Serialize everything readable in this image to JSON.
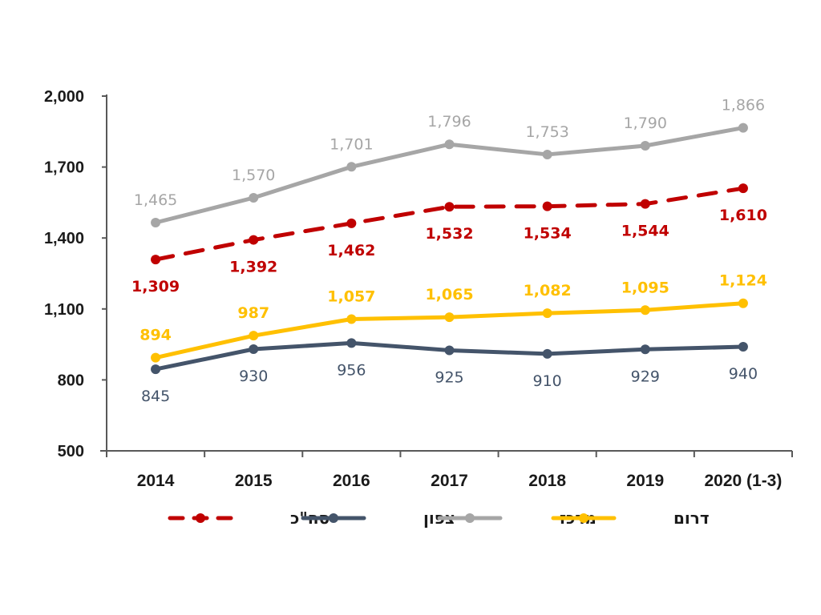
{
  "chart_data": {
    "type": "line",
    "title": "",
    "xlabel": "",
    "ylabel": "",
    "categories": [
      "2014",
      "2015",
      "2016",
      "2017",
      "2018",
      "2019",
      "2020 (1-3)"
    ],
    "ylim": [
      500,
      2000
    ],
    "yticks": [
      500,
      800,
      1100,
      1400,
      1700,
      2000
    ],
    "ytick_labels": [
      "500",
      "800",
      "1,100",
      "1,400",
      "1,700",
      "2,000"
    ],
    "grid": false,
    "legend_position": "bottom",
    "series": [
      {
        "name": "מרכז",
        "color": "#A6A6A6",
        "line_style": "solid",
        "label_position": "above",
        "label_bold": false,
        "values": [
          1465,
          1570,
          1701,
          1796,
          1753,
          1790,
          1866
        ],
        "labels": [
          "1,465",
          "1,570",
          "1,701",
          "1,796",
          "1,753",
          "1,790",
          "1,866"
        ]
      },
      {
        "name": "סה\"כ",
        "color": "#C00000",
        "line_style": "dashed",
        "label_position": "below",
        "label_bold": true,
        "values": [
          1309,
          1392,
          1462,
          1532,
          1534,
          1544,
          1610
        ],
        "labels": [
          "1,309",
          "1,392",
          "1,462",
          "1,532",
          "1,534",
          "1,544",
          "1,610"
        ]
      },
      {
        "name": "דרום",
        "color": "#FFC000",
        "line_style": "solid",
        "label_position": "above",
        "label_bold": true,
        "values": [
          894,
          987,
          1057,
          1065,
          1082,
          1095,
          1124
        ],
        "labels": [
          "894",
          "987",
          "1,057",
          "1,065",
          "1,082",
          "1,095",
          "1,124"
        ]
      },
      {
        "name": "צפון",
        "color": "#44546A",
        "line_style": "solid",
        "label_position": "below",
        "label_bold": false,
        "values": [
          845,
          930,
          956,
          925,
          910,
          929,
          940
        ],
        "labels": [
          "845",
          "930",
          "956",
          "925",
          "910",
          "929",
          "940"
        ]
      }
    ],
    "legend_order": [
      "סה\"כ",
      "צפון",
      "מרכז",
      "דרום"
    ]
  }
}
